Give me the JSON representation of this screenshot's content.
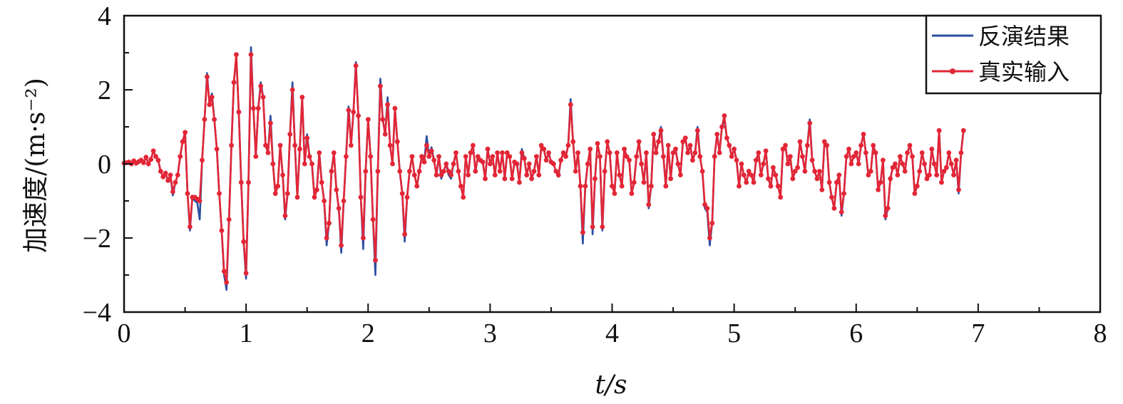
{
  "chart_data": {
    "type": "line",
    "xlabel": "t/s",
    "ylabel": "加速度/(m·s⁻²)",
    "xlim": [
      0,
      8
    ],
    "ylim": [
      -4,
      4
    ],
    "x_ticks": [
      "0",
      "1",
      "2",
      "3",
      "4",
      "5",
      "6",
      "7",
      "8"
    ],
    "y_ticks": [
      "−4",
      "−2",
      "0",
      "2",
      "4"
    ],
    "legend_position": "top-right",
    "grid": false,
    "dt": 0.02,
    "x_start": 0,
    "series": [
      {
        "name": "反演结果",
        "color": "#2b4ea2",
        "markers": false,
        "values": [
          0.02,
          0.03,
          0.05,
          0.0,
          0.08,
          0.02,
          0.06,
          0.1,
          0.03,
          0.18,
          0.0,
          0.12,
          0.35,
          0.2,
          0.1,
          -0.2,
          -0.35,
          -0.25,
          -0.45,
          -0.3,
          -0.85,
          -0.5,
          -0.3,
          0.2,
          0.6,
          0.85,
          -0.8,
          -1.8,
          -0.9,
          -1.0,
          -1.05,
          -1.5,
          0.1,
          1.2,
          2.45,
          1.6,
          1.9,
          1.2,
          0.4,
          -0.8,
          -1.8,
          -3.0,
          -3.4,
          -1.5,
          0.5,
          2.2,
          2.9,
          1.4,
          -0.5,
          -2.1,
          -3.1,
          -0.5,
          3.15,
          1.5,
          0.2,
          1.5,
          2.2,
          1.8,
          0.5,
          0.3,
          1.3,
          0.0,
          -0.8,
          -0.6,
          0.5,
          -0.3,
          -1.5,
          -0.8,
          0.8,
          2.2,
          0.5,
          -0.9,
          0.4,
          1.8,
          0.0,
          0.8,
          0.2,
          0.0,
          -0.9,
          -0.7,
          0.3,
          -0.5,
          -1.0,
          -2.2,
          -1.6,
          -0.2,
          0.3,
          -0.7,
          -1.2,
          -2.4,
          -1.0,
          0.2,
          1.55,
          0.5,
          1.4,
          2.75,
          1.3,
          -0.9,
          -2.3,
          -0.2,
          1.2,
          0.2,
          -1.5,
          -3.0,
          -0.2,
          2.3,
          1.2,
          0.8,
          1.8,
          0.5,
          0.0,
          1.5,
          0.6,
          -0.2,
          -0.8,
          -2.1,
          -0.9,
          -0.2,
          0.2,
          -0.3,
          -0.6,
          -0.2,
          0.2,
          0.05,
          0.75,
          0.2,
          0.45,
          0.1,
          -0.3,
          0.2,
          -0.4,
          -0.2,
          0.0,
          -0.3,
          -0.4,
          0.0,
          0.3,
          -0.2,
          -0.6,
          -0.9,
          0.2,
          -0.3,
          0.3,
          0.5,
          -0.2,
          0.2,
          0.1,
          0.05,
          -0.4,
          0.4,
          0.0,
          0.2,
          -0.3,
          0.3,
          -0.2,
          0.3,
          -0.4,
          0.3,
          0.2,
          -0.4,
          0.05,
          0.0,
          -0.5,
          0.4,
          0.15,
          -0.3,
          0.0,
          -0.4,
          -0.2,
          0.2,
          -0.3,
          0.5,
          0.4,
          0.1,
          0.3,
          0.05,
          0.0,
          -0.2,
          -0.35,
          0.1,
          0.3,
          0.2,
          0.5,
          1.75,
          0.6,
          -0.2,
          0.3,
          -0.6,
          -2.15,
          -0.6,
          0.0,
          0.4,
          -1.9,
          -0.4,
          0.55,
          0.2,
          -1.8,
          -0.2,
          0.6,
          0.3,
          -0.6,
          -0.8,
          0.3,
          -0.3,
          -0.6,
          0.4,
          0.2,
          0.1,
          -0.8,
          -0.5,
          0.2,
          0.6,
          0.0,
          -0.5,
          0.3,
          -1.2,
          -0.6,
          0.8,
          0.3,
          0.6,
          1.0,
          0.2,
          -0.6,
          0.5,
          -0.4,
          0.3,
          0.4,
          0.0,
          -0.3,
          0.6,
          0.7,
          0.3,
          0.5,
          0.1,
          0.3,
          1.0,
          0.2,
          -0.2,
          -1.2,
          -1.3,
          -2.2,
          -1.6,
          0.2,
          0.8,
          0.3,
          1.0,
          1.2,
          0.7,
          0.5,
          0.2,
          0.4,
          0.1,
          -0.6,
          0.0,
          -0.3,
          -0.5,
          -0.2,
          -0.3,
          -0.5,
          0.1,
          0.3,
          -0.3,
          0.0,
          0.35,
          -0.4,
          -0.6,
          -0.1,
          -0.3,
          -0.6,
          -0.9,
          0.4,
          0.5,
          0.0,
          0.2,
          -0.4,
          -0.2,
          -0.1,
          0.6,
          0.2,
          -0.2,
          0.5,
          1.2,
          0.1,
          -0.2,
          -0.4,
          -0.2,
          -0.7,
          0.6,
          0.5,
          -0.5,
          -0.9,
          -1.2,
          -0.5,
          -0.3,
          -1.4,
          -0.8,
          0.2,
          0.4,
          0.0,
          0.2,
          0.3,
          0.0,
          0.5,
          0.8,
          0.3,
          -0.3,
          -0.2,
          0.5,
          0.3,
          -0.7,
          -0.5,
          0.1,
          -1.5,
          -1.2,
          -0.4,
          -0.1,
          0.0,
          -0.3,
          0.2,
          0.0,
          -0.2,
          0.3,
          0.5,
          0.2,
          -0.8,
          -0.6,
          -0.2,
          0.3,
          0.0,
          -0.4,
          -0.3,
          0.4,
          0.0,
          -0.3,
          0.9,
          -0.5,
          -0.2,
          -0.1,
          0.3,
          0.0,
          -0.3,
          0.1,
          -0.8,
          0.3,
          0.9
        ],
        "note_values": "反演结果 follows the 真实输入 values with small deviations"
      },
      {
        "name": "真实输入",
        "color": "#e32636",
        "markers": true,
        "values": [
          0.02,
          0.03,
          0.05,
          0.0,
          0.08,
          0.02,
          0.06,
          0.1,
          0.03,
          0.18,
          0.0,
          0.12,
          0.35,
          0.2,
          0.1,
          -0.2,
          -0.35,
          -0.25,
          -0.45,
          -0.3,
          -0.75,
          -0.5,
          -0.3,
          0.2,
          0.6,
          0.85,
          -0.8,
          -1.7,
          -0.9,
          -0.9,
          -0.95,
          -1.0,
          0.1,
          1.2,
          2.35,
          1.6,
          1.8,
          1.2,
          0.4,
          -0.8,
          -1.8,
          -2.9,
          -3.2,
          -1.5,
          0.5,
          2.2,
          2.95,
          1.4,
          -0.5,
          -2.1,
          -2.95,
          -0.5,
          2.95,
          1.5,
          0.2,
          1.5,
          2.1,
          1.8,
          0.5,
          0.3,
          1.1,
          0.0,
          -0.8,
          -0.6,
          0.5,
          -0.3,
          -1.4,
          -0.8,
          0.8,
          2.0,
          0.5,
          -0.9,
          0.4,
          1.8,
          0.0,
          0.7,
          0.2,
          0.0,
          -0.9,
          -0.7,
          0.3,
          -0.5,
          -1.0,
          -2.0,
          -1.6,
          -0.2,
          0.3,
          -0.7,
          -1.2,
          -2.2,
          -1.0,
          0.2,
          1.45,
          0.5,
          1.4,
          2.65,
          1.3,
          -0.9,
          -2.0,
          -0.2,
          1.2,
          0.2,
          -1.5,
          -2.6,
          -0.2,
          2.1,
          1.2,
          0.8,
          1.6,
          0.5,
          0.0,
          1.5,
          0.6,
          -0.2,
          -0.8,
          -1.9,
          -0.9,
          -0.2,
          0.2,
          -0.3,
          -0.6,
          -0.2,
          0.2,
          0.05,
          0.5,
          0.2,
          0.35,
          0.1,
          -0.3,
          0.2,
          -0.3,
          -0.2,
          0.0,
          -0.2,
          -0.3,
          0.0,
          0.3,
          -0.2,
          -0.6,
          -0.9,
          0.2,
          -0.3,
          0.3,
          0.5,
          -0.2,
          0.2,
          0.1,
          0.05,
          -0.4,
          0.4,
          0.0,
          0.2,
          -0.3,
          0.3,
          -0.2,
          0.3,
          -0.4,
          0.3,
          0.2,
          -0.4,
          0.05,
          0.0,
          -0.5,
          0.3,
          0.15,
          -0.3,
          0.0,
          -0.4,
          -0.2,
          0.2,
          -0.3,
          0.5,
          0.4,
          0.1,
          0.3,
          0.05,
          0.0,
          -0.2,
          -0.3,
          0.1,
          0.3,
          0.2,
          0.5,
          1.6,
          0.6,
          -0.2,
          0.3,
          -0.6,
          -1.85,
          -0.6,
          0.0,
          0.4,
          -1.7,
          -0.4,
          0.55,
          0.2,
          -1.7,
          -0.2,
          0.6,
          0.3,
          -0.6,
          -0.8,
          0.3,
          -0.3,
          -0.6,
          0.4,
          0.2,
          0.1,
          -0.8,
          -0.5,
          0.2,
          0.6,
          0.0,
          -0.5,
          0.3,
          -1.1,
          -0.6,
          0.8,
          0.3,
          0.6,
          0.9,
          0.2,
          -0.6,
          0.5,
          -0.4,
          0.3,
          0.4,
          0.0,
          -0.3,
          0.6,
          0.7,
          0.3,
          0.5,
          0.1,
          0.3,
          0.9,
          0.2,
          -0.2,
          -1.1,
          -1.2,
          -2.0,
          -1.6,
          0.2,
          0.8,
          0.3,
          1.0,
          1.3,
          0.7,
          0.5,
          0.2,
          0.4,
          0.1,
          -0.6,
          0.0,
          -0.3,
          -0.5,
          -0.2,
          -0.3,
          -0.5,
          0.1,
          0.3,
          -0.3,
          0.0,
          0.35,
          -0.4,
          -0.6,
          -0.1,
          -0.3,
          -0.6,
          -0.9,
          0.4,
          0.5,
          0.0,
          0.2,
          -0.4,
          -0.2,
          -0.1,
          0.6,
          0.2,
          -0.2,
          0.5,
          1.1,
          0.1,
          -0.2,
          -0.4,
          -0.2,
          -0.7,
          0.6,
          0.5,
          -0.5,
          -0.9,
          -1.2,
          -0.5,
          -0.3,
          -1.3,
          -0.8,
          0.2,
          0.4,
          0.0,
          0.2,
          0.3,
          0.0,
          0.5,
          0.8,
          0.3,
          -0.3,
          -0.2,
          0.5,
          0.3,
          -0.7,
          -0.5,
          0.1,
          -1.4,
          -1.2,
          -0.4,
          -0.1,
          0.0,
          -0.3,
          0.2,
          0.0,
          -0.2,
          0.3,
          0.5,
          0.2,
          -0.8,
          -0.6,
          -0.2,
          0.3,
          0.0,
          -0.4,
          -0.3,
          0.4,
          0.0,
          -0.3,
          0.9,
          -0.5,
          -0.2,
          -0.1,
          0.3,
          0.0,
          -0.3,
          0.1,
          -0.7,
          0.3,
          0.9
        ]
      }
    ]
  }
}
